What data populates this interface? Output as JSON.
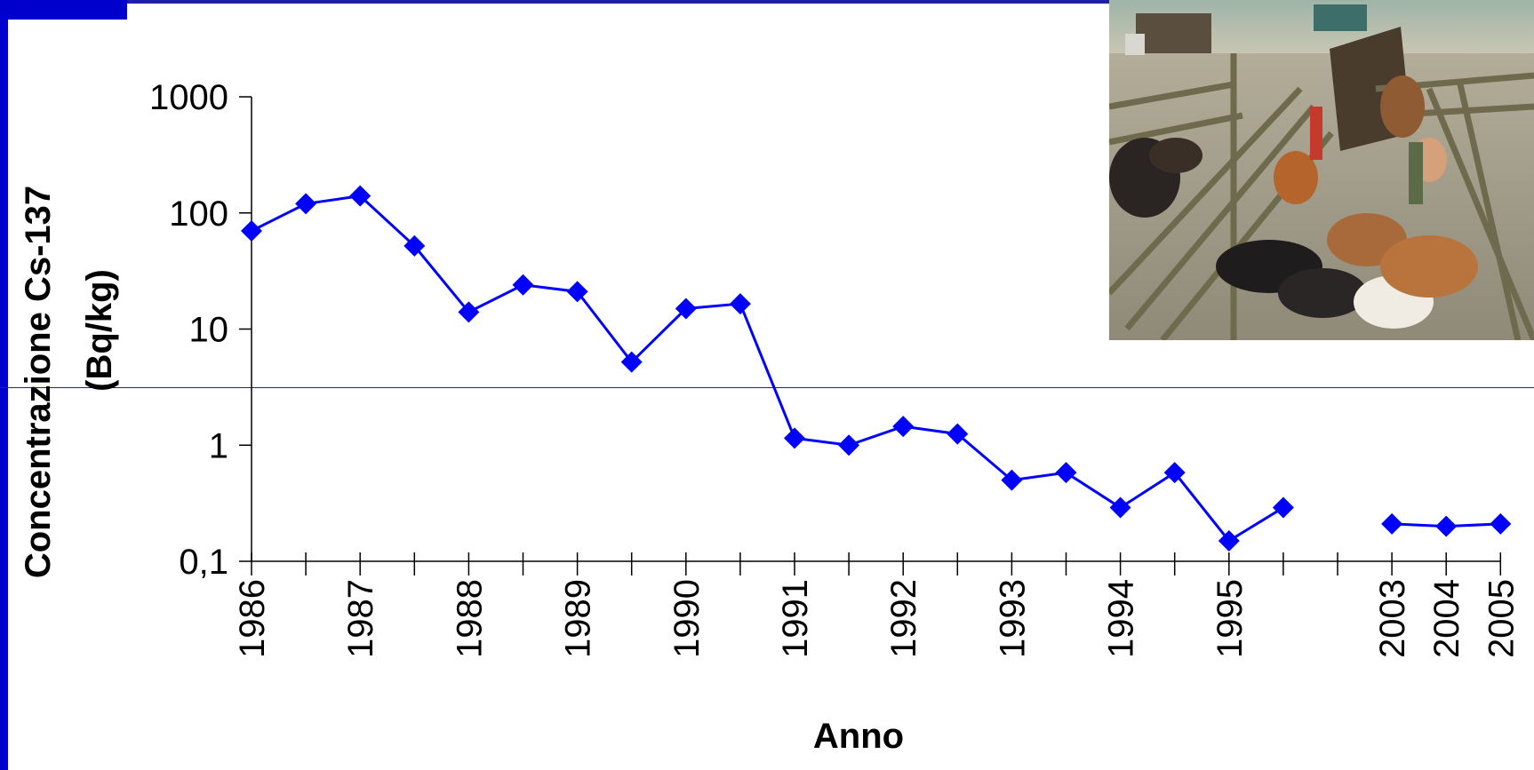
{
  "colors": {
    "accent": "#0000cc",
    "series": "#0000ff",
    "frame": "#1f1fa8"
  },
  "chart_data": {
    "type": "line",
    "y_scale": "log",
    "ylim": [
      0.1,
      1000
    ],
    "y_ticks": [
      0.1,
      1,
      10,
      100,
      1000
    ],
    "y_tick_labels": [
      "0,1",
      "1",
      "10",
      "100",
      "1000"
    ],
    "xlabel": "Anno",
    "ylabel_lines": [
      "Concentrazione Cs-137",
      "(Bq/kg)"
    ],
    "x_tick_labels": [
      "1986",
      "1987",
      "1988",
      "1989",
      "1990",
      "1991",
      "1992",
      "1993",
      "1994",
      "1995",
      "2003",
      "2004",
      "2005"
    ],
    "series": [
      {
        "points": [
          {
            "x": "1986",
            "y": 70
          },
          {
            "x": "1986.5",
            "y": 120
          },
          {
            "x": "1987",
            "y": 140
          },
          {
            "x": "1987.5",
            "y": 52
          },
          {
            "x": "1988",
            "y": 14
          },
          {
            "x": "1988.5",
            "y": 24
          },
          {
            "x": "1989",
            "y": 21
          },
          {
            "x": "1989.5",
            "y": 5.2
          },
          {
            "x": "1990",
            "y": 15
          },
          {
            "x": "1990.5",
            "y": 16.5
          },
          {
            "x": "1991",
            "y": 1.15
          },
          {
            "x": "1991.5",
            "y": 1.0
          },
          {
            "x": "1992",
            "y": 1.45
          },
          {
            "x": "1992.5",
            "y": 1.25
          },
          {
            "x": "1993",
            "y": 0.5
          },
          {
            "x": "1993.5",
            "y": 0.58
          },
          {
            "x": "1994",
            "y": 0.29
          },
          {
            "x": "1994.5",
            "y": 0.58
          },
          {
            "x": "1995",
            "y": 0.15
          },
          {
            "x": "1995.5",
            "y": 0.29
          },
          {
            "x": "2003",
            "y": 0.21,
            "gap_before": true
          },
          {
            "x": "2004",
            "y": 0.2
          },
          {
            "x": "2005",
            "y": 0.21
          }
        ]
      }
    ]
  },
  "photo": {
    "description_icon": "cattle-corral-photo-icon"
  }
}
